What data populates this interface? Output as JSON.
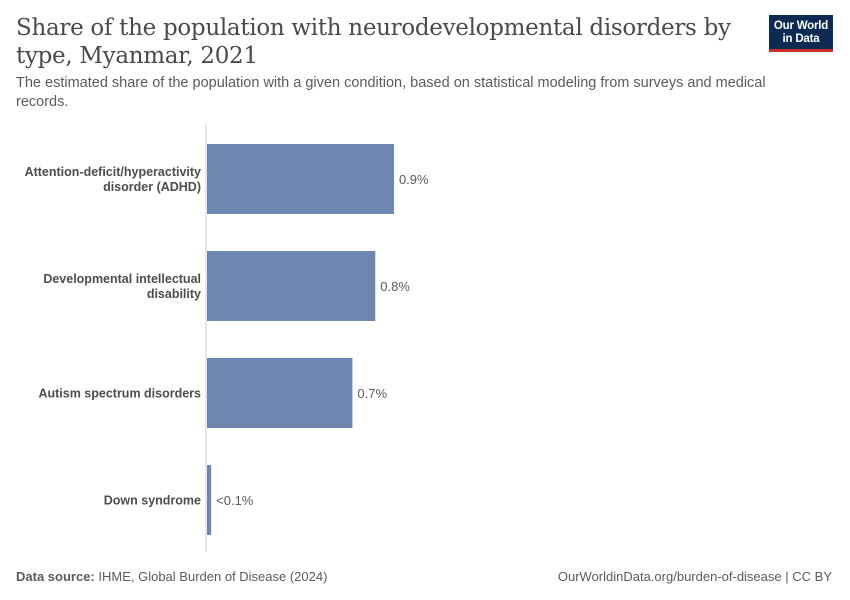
{
  "header": {
    "title": "Share of the population with neurodevelopmental disorders by type, Myanmar, 2021",
    "subtitle": "The estimated share of the population with a given condition, based on statistical modeling from surveys and medical records.",
    "logo_line1": "Our World",
    "logo_line2": "in Data"
  },
  "footer": {
    "source_label": "Data source:",
    "source_text": "IHME, Global Burden of Disease (2024)",
    "link_text": "OurWorldinData.org/burden-of-disease",
    "separator": "|",
    "license": "CC BY"
  },
  "colors": {
    "bar": "#6d87b0",
    "axis": "#cccccc",
    "logo_bg": "#0d2a52",
    "logo_accent": "#c9302c"
  },
  "chart_data": {
    "type": "bar",
    "orientation": "horizontal",
    "categories": [
      "Attention-deficit/hyperactivity disorder (ADHD)",
      "Developmental intellectual disability",
      "Autism spectrum disorders",
      "Down syndrome"
    ],
    "category_label_lines": [
      [
        "Attention-deficit/hyperactivity",
        "disorder (ADHD)"
      ],
      [
        "Developmental intellectual",
        "disability"
      ],
      [
        "Autism spectrum disorders"
      ],
      [
        "Down syndrome"
      ]
    ],
    "values": [
      0.9,
      0.81,
      0.7,
      0.02
    ],
    "value_labels": [
      "0.9%",
      "0.8%",
      "0.7%",
      "<0.1%"
    ],
    "unit": "%",
    "xlim": [
      0,
      3.1
    ],
    "grid": false,
    "legend": "none"
  }
}
